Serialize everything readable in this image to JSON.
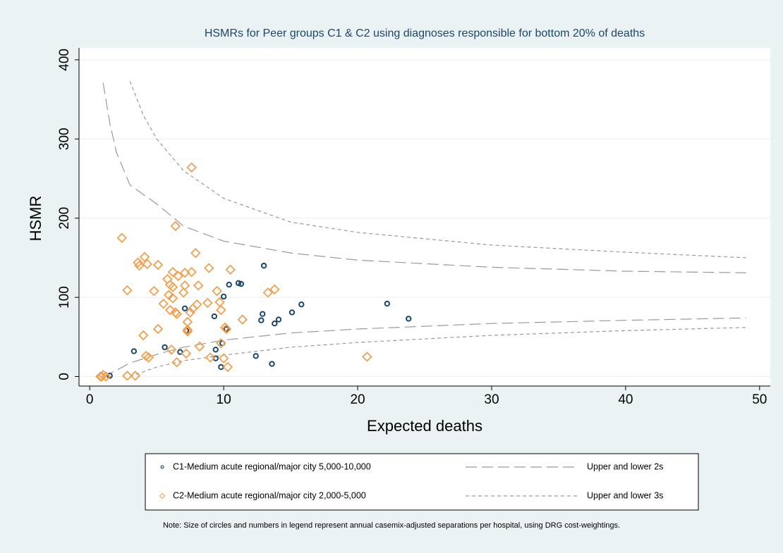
{
  "chart_data": {
    "type": "scatter",
    "title": "HSMRs for Peer groups C1 & C2 using diagnoses responsible for bottom 20% of deaths",
    "x_label": "Expected deaths",
    "y_label": "HSMR",
    "note": "Note: Size of circles and numbers in legend represent annual casemix-adjusted separations per hospital, using DRG cost-weightings.",
    "xlim": [
      -0.8,
      50.8
    ],
    "ylim": [
      -12,
      415
    ],
    "xticks": [
      0,
      10,
      20,
      30,
      40,
      50
    ],
    "yticks": [
      0,
      100,
      200,
      300,
      400
    ],
    "grid": true,
    "series": [
      {
        "name": "C1-Medium acute regional/major city 5,000-10,000",
        "color": "#1a476f",
        "marker": "circle",
        "x": [
          1.5,
          3.3,
          5.6,
          6.75,
          7.1,
          7.2,
          9.3,
          9.4,
          9.4,
          9.8,
          10.0,
          10.2,
          9.9,
          10.4,
          11.1,
          11.3,
          12.4,
          13.0,
          12.9,
          12.8,
          13.6,
          13.8,
          14.1,
          15.1,
          15.8,
          22.2,
          23.8
        ],
        "values": [
          1,
          32,
          37,
          31,
          86,
          58,
          76,
          34,
          23,
          12,
          101,
          60,
          42,
          116,
          118,
          117,
          26,
          140,
          79,
          71,
          16,
          67,
          72,
          81,
          91,
          92,
          73
        ]
      },
      {
        "name": "C2-Medium acute regional/major city 2,000-5,000",
        "color": "#f0a050",
        "marker": "diamond",
        "x": [
          0.8,
          1.0,
          0.9,
          1.2,
          2.4,
          2.8,
          2.8,
          3.4,
          3.6,
          3.7,
          4.0,
          4.1,
          4.2,
          4.4,
          4.3,
          4.8,
          5.1,
          5.1,
          5.5,
          5.8,
          5.9,
          6.0,
          6.0,
          6.1,
          6.2,
          6.2,
          6.2,
          6.4,
          6.4,
          6.5,
          6.6,
          6.5,
          7.0,
          7.1,
          7.1,
          7.2,
          7.3,
          7.3,
          7.3,
          7.5,
          7.6,
          7.7,
          7.6,
          7.9,
          8.0,
          8.1,
          8.2,
          8.8,
          8.9,
          9.0,
          9.5,
          9.7,
          9.8,
          9.8,
          10.0,
          10.1,
          10.2,
          10.3,
          10.5,
          11.4,
          13.3,
          13.8,
          20.7
        ],
        "values": [
          0,
          2,
          0,
          0,
          175,
          109,
          1,
          1,
          144,
          140,
          52,
          151,
          26,
          24,
          142,
          108,
          141,
          60,
          92,
          123,
          103,
          84,
          116,
          34,
          132,
          99,
          113,
          190,
          81,
          18,
          127,
          79,
          106,
          115,
          131,
          29,
          59,
          57,
          69,
          81,
          132,
          86,
          264,
          156,
          91,
          115,
          38,
          93,
          137,
          24,
          108,
          94,
          84,
          42,
          23,
          62,
          60,
          12,
          135,
          72,
          106,
          110,
          25
        ]
      }
    ],
    "limits": [
      {
        "name": "Upper and lower 2s",
        "color": "#999999",
        "dash": "long",
        "x": [
          1,
          1.5,
          2,
          3,
          5,
          7,
          10,
          15,
          20,
          30,
          40,
          49
        ],
        "upper": [
          371,
          320,
          283,
          242,
          218,
          190,
          171,
          156,
          147,
          138,
          133,
          131
        ],
        "lower": [
          0,
          4,
          8,
          17,
          28,
          37,
          46,
          55,
          60,
          67,
          71,
          74
        ]
      },
      {
        "name": "Upper and lower 3s",
        "color": "#999999",
        "dash": "short",
        "x": [
          3,
          4,
          5,
          7,
          10,
          15,
          20,
          30,
          40,
          49
        ],
        "upper": [
          373,
          330,
          300,
          260,
          225,
          195,
          182,
          166,
          157,
          150
        ],
        "lower": [
          0,
          6,
          12,
          20,
          27,
          37,
          43,
          52,
          58,
          62
        ]
      }
    ]
  }
}
